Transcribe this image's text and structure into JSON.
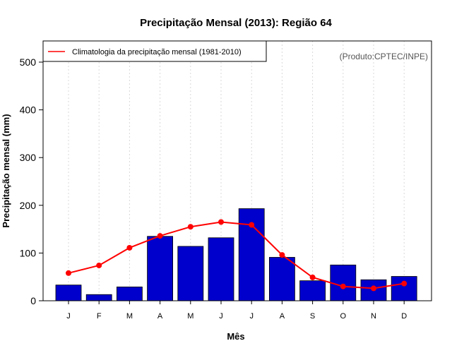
{
  "chart_data": {
    "type": "bar",
    "title": "Precipitação Mensal (2013): Região 64",
    "xlabel": "Mês",
    "ylabel": "Precipitação mensal (mm)",
    "categories": [
      "J",
      "F",
      "M",
      "A",
      "M",
      "J",
      "J",
      "A",
      "S",
      "O",
      "N",
      "D"
    ],
    "ylim": [
      0,
      540
    ],
    "yticks": [
      0,
      100,
      200,
      300,
      400,
      500
    ],
    "grid": "vertical dotted",
    "series": [
      {
        "name": "Precipitação mensal (2013)",
        "type": "bar",
        "color": "#0000cc",
        "values": [
          33,
          13,
          29,
          135,
          114,
          132,
          193,
          91,
          42,
          75,
          44,
          51
        ]
      },
      {
        "name": "Climatologia da precipitação mensal (1981-2010)",
        "type": "line",
        "color": "#ff0000",
        "values": [
          58,
          74,
          111,
          136,
          155,
          165,
          159,
          96,
          49,
          30,
          26,
          36
        ]
      }
    ],
    "legend": {
      "position": "top-left",
      "label": "Climatologia da precipitação mensal (1981-2010)"
    },
    "annotation": "(Produto:CPTEC/INPE)"
  }
}
